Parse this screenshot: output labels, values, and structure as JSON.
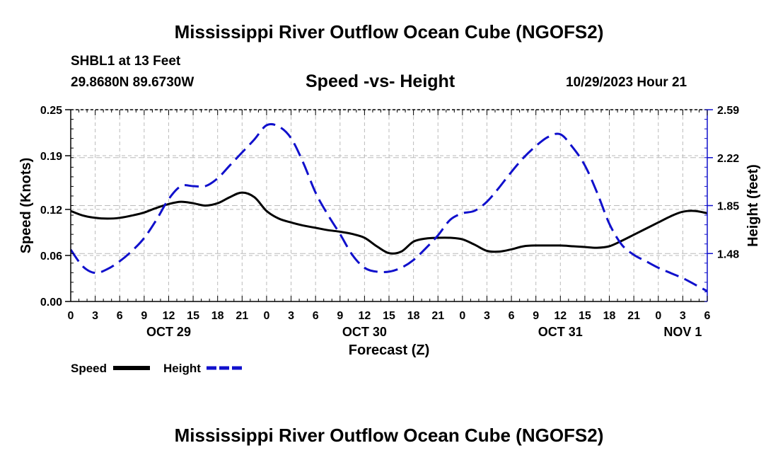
{
  "header": {
    "main_title": "Mississippi River Outflow Ocean Cube (NGOFS2)",
    "station": "SHBL1 at 13 Feet",
    "location": "29.8680N  89.6730W",
    "chart_subtitle": "Speed -vs- Height",
    "datetime": "10/29/2023 Hour 21"
  },
  "footer": {
    "repeated_title": "Mississippi River Outflow Ocean Cube (NGOFS2)"
  },
  "colors": {
    "speed": "#000000",
    "height": "#1010cc",
    "grid": "#bbbbbb"
  },
  "chart_data": {
    "type": "line",
    "title": "Speed -vs- Height",
    "xlabel": "Forecast (Z)",
    "ylabel": "Speed (Knots)",
    "y2label": "Height (feet)",
    "x_unit": "hours since Oct 29 00Z",
    "xlim": [
      0,
      78
    ],
    "ylim": [
      0,
      0.25
    ],
    "y2lim": [
      1.11,
      2.59
    ],
    "x_ticks": [
      0,
      3,
      6,
      9,
      12,
      15,
      18,
      21,
      24,
      27,
      30,
      33,
      36,
      39,
      42,
      45,
      48,
      51,
      54,
      57,
      60,
      63,
      66,
      69,
      72,
      75,
      78
    ],
    "x_tick_labels": [
      "0",
      "3",
      "6",
      "9",
      "12",
      "15",
      "18",
      "21",
      "0",
      "3",
      "6",
      "9",
      "12",
      "15",
      "18",
      "21",
      "0",
      "3",
      "6",
      "9",
      "12",
      "15",
      "18",
      "21",
      "0",
      "3",
      "6"
    ],
    "y_ticks": [
      0.0,
      0.06,
      0.12,
      0.19,
      0.25
    ],
    "y_tick_labels": [
      "0.00",
      "0.06",
      "0.12",
      "0.19",
      "0.25"
    ],
    "y2_ticks": [
      1.48,
      1.85,
      2.22,
      2.59
    ],
    "y2_tick_labels": [
      "1.48",
      "1.85",
      "2.22",
      "2.59"
    ],
    "day_labels": [
      {
        "x": 12,
        "label": "OCT 29"
      },
      {
        "x": 36,
        "label": "OCT 30"
      },
      {
        "x": 60,
        "label": "OCT 31"
      },
      {
        "x": 75,
        "label": "NOV 1"
      }
    ],
    "legend": [
      {
        "name": "Speed",
        "style": "solid"
      },
      {
        "name": "Height",
        "style": "dashed"
      }
    ],
    "series": [
      {
        "name": "Speed",
        "axis": "left",
        "x": [
          0,
          1.5,
          3,
          4.5,
          6,
          7.5,
          9,
          10.5,
          12,
          13.5,
          15,
          16.5,
          18,
          19.5,
          21,
          22.5,
          24,
          25.5,
          27,
          28.5,
          30,
          31.5,
          33,
          34.5,
          36,
          37.5,
          39,
          40.5,
          42,
          43.5,
          45,
          46.5,
          48,
          49.5,
          51,
          52.5,
          54,
          55.5,
          57,
          58.5,
          60,
          61.5,
          63,
          64.5,
          66,
          67.5,
          69,
          70.5,
          72,
          73.5,
          75,
          76.5,
          78
        ],
        "values": [
          0.118,
          0.112,
          0.109,
          0.108,
          0.109,
          0.112,
          0.116,
          0.122,
          0.127,
          0.13,
          0.128,
          0.125,
          0.128,
          0.136,
          0.142,
          0.136,
          0.118,
          0.108,
          0.103,
          0.099,
          0.096,
          0.093,
          0.091,
          0.088,
          0.083,
          0.072,
          0.063,
          0.065,
          0.078,
          0.082,
          0.083,
          0.083,
          0.081,
          0.074,
          0.066,
          0.065,
          0.068,
          0.072,
          0.073,
          0.073,
          0.073,
          0.072,
          0.071,
          0.07,
          0.072,
          0.079,
          0.087,
          0.095,
          0.103,
          0.111,
          0.117,
          0.118,
          0.115
        ]
      },
      {
        "name": "Height",
        "axis": "right",
        "x": [
          0,
          1.5,
          3,
          4.5,
          6,
          7.5,
          9,
          10.5,
          12,
          13.5,
          15,
          16.5,
          18,
          19.5,
          21,
          22.5,
          24,
          25.5,
          27,
          28.5,
          30,
          31.5,
          33,
          34.5,
          36,
          37.5,
          39,
          40.5,
          42,
          43.5,
          45,
          46.5,
          48,
          49.5,
          51,
          52.5,
          54,
          55.5,
          57,
          58.5,
          60,
          61.5,
          63,
          64.5,
          66,
          67.5,
          69,
          70.5,
          72,
          73.5,
          75,
          76.5,
          78
        ],
        "values": [
          1.51,
          1.38,
          1.33,
          1.36,
          1.42,
          1.5,
          1.6,
          1.74,
          1.9,
          2.0,
          2.0,
          2.0,
          2.06,
          2.16,
          2.26,
          2.36,
          2.47,
          2.46,
          2.37,
          2.18,
          1.95,
          1.78,
          1.63,
          1.47,
          1.37,
          1.34,
          1.34,
          1.37,
          1.43,
          1.52,
          1.62,
          1.74,
          1.79,
          1.81,
          1.88,
          1.99,
          2.11,
          2.22,
          2.31,
          2.38,
          2.4,
          2.3,
          2.16,
          1.95,
          1.71,
          1.55,
          1.47,
          1.42,
          1.37,
          1.33,
          1.29,
          1.24,
          1.19
        ]
      }
    ]
  }
}
